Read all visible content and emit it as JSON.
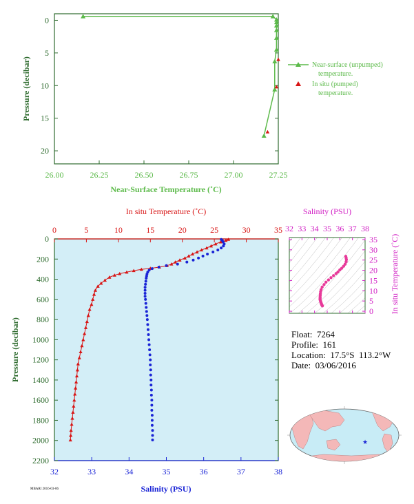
{
  "colors": {
    "near_surface": "#5cba4a",
    "in_situ": "#d81414",
    "salinity": "#1a24d6",
    "ts_points": "#e83a9a",
    "axis_green": "#2e6b2e",
    "axis_red": "#d81414",
    "axis_blue": "#1a24d6",
    "axis_magenta": "#d11fc4",
    "plot_bg": "#d3eef7",
    "ocean": "#c8ecf6",
    "land": "#f4b8b8"
  },
  "info": {
    "float": "Float:  7264",
    "profile": "Profile:  161",
    "location": "Location:  17.5°S  113.2°W",
    "date": "Date:  03/06/2016"
  },
  "footer_text": "MBARI 2016-03-06",
  "chart_data": [
    {
      "id": "near-surface",
      "type": "line",
      "title": "",
      "xlabel": "Near-Surface Temperature (˚C)",
      "ylabel": "Pressure (decibar)",
      "xlim": [
        26.0,
        27.25
      ],
      "ylim": [
        22,
        -1
      ],
      "x_ticks": [
        "26.00",
        "26.25",
        "26.50",
        "26.75",
        "27.00",
        "27.25"
      ],
      "y_ticks": [
        "0",
        "5",
        "10",
        "15",
        "20"
      ],
      "legend_placement": "right",
      "series": [
        {
          "name": "Near-surface (unpumped) temperature.",
          "style": "line-triangle",
          "points": [
            [
              26.16,
              -0.6
            ],
            [
              27.22,
              -0.6
            ],
            [
              27.24,
              -0.1
            ],
            [
              27.24,
              0.3
            ],
            [
              27.24,
              0.8
            ],
            [
              27.24,
              1.5
            ],
            [
              27.24,
              2.7
            ],
            [
              27.24,
              4.5
            ],
            [
              27.23,
              6.3
            ],
            [
              27.23,
              10.6
            ],
            [
              27.17,
              17.7
            ]
          ]
        },
        {
          "name": "In situ (pumped) temperature.",
          "style": "triangle",
          "points": [
            [
              27.25,
              6.0
            ],
            [
              27.24,
              10.2
            ],
            [
              27.19,
              17.1
            ]
          ]
        }
      ]
    },
    {
      "id": "profile",
      "type": "scatter",
      "title": "",
      "ylabel": "Pressure (decibar)",
      "top_xlabel": "In situ Temperature (˚C)",
      "bottom_xlabel": "Salinity (PSU)",
      "temp_lim": [
        0,
        35
      ],
      "sal_lim": [
        32,
        38
      ],
      "ylim": [
        2200,
        0
      ],
      "temp_ticks": [
        "0",
        "5",
        "10",
        "15",
        "20",
        "25",
        "30",
        "35"
      ],
      "sal_ticks": [
        "32",
        "33",
        "34",
        "35",
        "36",
        "37",
        "38"
      ],
      "y_ticks": [
        "0",
        "200",
        "400",
        "600",
        "800",
        "1000",
        "1200",
        "1400",
        "1600",
        "1800",
        "2000",
        "2200"
      ],
      "temperature": {
        "style": "line-triangle",
        "points": [
          [
            27.2,
            5
          ],
          [
            26.8,
            15
          ],
          [
            26.0,
            30
          ],
          [
            25.2,
            50
          ],
          [
            24.5,
            70
          ],
          [
            23.8,
            90
          ],
          [
            23.0,
            110
          ],
          [
            22.3,
            130
          ],
          [
            21.6,
            150
          ],
          [
            21.0,
            170
          ],
          [
            20.4,
            190
          ],
          [
            19.6,
            210
          ],
          [
            18.9,
            230
          ],
          [
            18.3,
            250
          ],
          [
            17.6,
            265
          ],
          [
            16.4,
            280
          ],
          [
            15.0,
            292
          ],
          [
            13.6,
            302
          ],
          [
            12.4,
            315
          ],
          [
            11.3,
            330
          ],
          [
            10.2,
            345
          ],
          [
            9.4,
            360
          ],
          [
            8.6,
            380
          ],
          [
            7.9,
            410
          ],
          [
            7.3,
            440
          ],
          [
            6.8,
            470
          ],
          [
            6.4,
            510
          ],
          [
            6.2,
            550
          ],
          [
            6.0,
            600
          ],
          [
            5.8,
            650
          ],
          [
            5.5,
            700
          ],
          [
            5.3,
            760
          ],
          [
            5.1,
            820
          ],
          [
            4.9,
            880
          ],
          [
            4.7,
            940
          ],
          [
            4.5,
            1000
          ],
          [
            4.3,
            1060
          ],
          [
            4.1,
            1120
          ],
          [
            3.9,
            1180
          ],
          [
            3.7,
            1240
          ],
          [
            3.6,
            1300
          ],
          [
            3.5,
            1360
          ],
          [
            3.4,
            1420
          ],
          [
            3.3,
            1480
          ],
          [
            3.2,
            1540
          ],
          [
            3.1,
            1600
          ],
          [
            3.0,
            1660
          ],
          [
            2.9,
            1720
          ],
          [
            2.8,
            1780
          ],
          [
            2.7,
            1840
          ],
          [
            2.6,
            1900
          ],
          [
            2.55,
            1950
          ],
          [
            2.5,
            1995
          ]
        ]
      },
      "salinity": {
        "style": "dots",
        "points": [
          [
            36.47,
            5
          ],
          [
            36.5,
            15
          ],
          [
            36.52,
            30
          ],
          [
            36.55,
            50
          ],
          [
            36.53,
            70
          ],
          [
            36.47,
            90
          ],
          [
            36.38,
            110
          ],
          [
            36.25,
            130
          ],
          [
            36.1,
            150
          ],
          [
            35.98,
            170
          ],
          [
            35.86,
            190
          ],
          [
            35.72,
            210
          ],
          [
            35.55,
            230
          ],
          [
            35.3,
            250
          ],
          [
            35.0,
            265
          ],
          [
            34.8,
            280
          ],
          [
            34.62,
            295
          ],
          [
            34.54,
            310
          ],
          [
            34.5,
            330
          ],
          [
            34.48,
            350
          ],
          [
            34.47,
            370
          ],
          [
            34.46,
            390
          ],
          [
            34.45,
            420
          ],
          [
            34.44,
            450
          ],
          [
            34.43,
            480
          ],
          [
            34.43,
            510
          ],
          [
            34.43,
            540
          ],
          [
            34.43,
            570
          ],
          [
            34.44,
            600
          ],
          [
            34.45,
            640
          ],
          [
            34.46,
            680
          ],
          [
            34.47,
            720
          ],
          [
            34.48,
            760
          ],
          [
            34.49,
            800
          ],
          [
            34.5,
            850
          ],
          [
            34.51,
            900
          ],
          [
            34.52,
            950
          ],
          [
            34.53,
            1000
          ],
          [
            34.54,
            1050
          ],
          [
            34.55,
            1100
          ],
          [
            34.56,
            1150
          ],
          [
            34.57,
            1200
          ],
          [
            34.57,
            1250
          ],
          [
            34.58,
            1300
          ],
          [
            34.58,
            1350
          ],
          [
            34.59,
            1400
          ],
          [
            34.59,
            1450
          ],
          [
            34.6,
            1500
          ],
          [
            34.6,
            1550
          ],
          [
            34.61,
            1600
          ],
          [
            34.61,
            1650
          ],
          [
            34.61,
            1700
          ],
          [
            34.62,
            1750
          ],
          [
            34.62,
            1800
          ],
          [
            34.62,
            1850
          ],
          [
            34.63,
            1900
          ],
          [
            34.63,
            1950
          ],
          [
            34.63,
            1995
          ]
        ]
      }
    },
    {
      "id": "t-s-diagram",
      "type": "scatter",
      "title": "",
      "xlabel": "Salinity (PSU)",
      "ylabel": "In situ Temperature (˚C)",
      "xlim": [
        32,
        38
      ],
      "ylim": [
        -1,
        36
      ],
      "x_ticks": [
        "32",
        "33",
        "34",
        "35",
        "36",
        "37",
        "38"
      ],
      "y_ticks": [
        "0",
        "5",
        "10",
        "15",
        "20",
        "25",
        "30",
        "35"
      ],
      "points": [
        [
          36.47,
          26.8
        ],
        [
          36.5,
          26.0
        ],
        [
          36.52,
          25.2
        ],
        [
          36.5,
          24.2
        ],
        [
          36.42,
          23.0
        ],
        [
          36.3,
          22.0
        ],
        [
          36.15,
          21.0
        ],
        [
          36.0,
          20.2
        ],
        [
          35.85,
          19.2
        ],
        [
          35.7,
          18.4
        ],
        [
          35.5,
          17.4
        ],
        [
          35.3,
          16.4
        ],
        [
          35.1,
          15.3
        ],
        [
          34.9,
          14.2
        ],
        [
          34.75,
          13.0
        ],
        [
          34.6,
          11.8
        ],
        [
          34.52,
          10.6
        ],
        [
          34.48,
          9.6
        ],
        [
          34.46,
          8.6
        ],
        [
          34.45,
          7.8
        ],
        [
          34.44,
          7.0
        ],
        [
          34.44,
          6.4
        ],
        [
          34.43,
          5.9
        ],
        [
          34.45,
          5.4
        ],
        [
          34.47,
          5.0
        ],
        [
          34.49,
          4.6
        ],
        [
          34.5,
          4.3
        ],
        [
          34.52,
          4.0
        ],
        [
          34.54,
          3.7
        ],
        [
          34.55,
          3.4
        ],
        [
          34.57,
          3.2
        ],
        [
          34.58,
          3.0
        ],
        [
          34.6,
          2.8
        ],
        [
          34.62,
          2.6
        ]
      ]
    }
  ]
}
